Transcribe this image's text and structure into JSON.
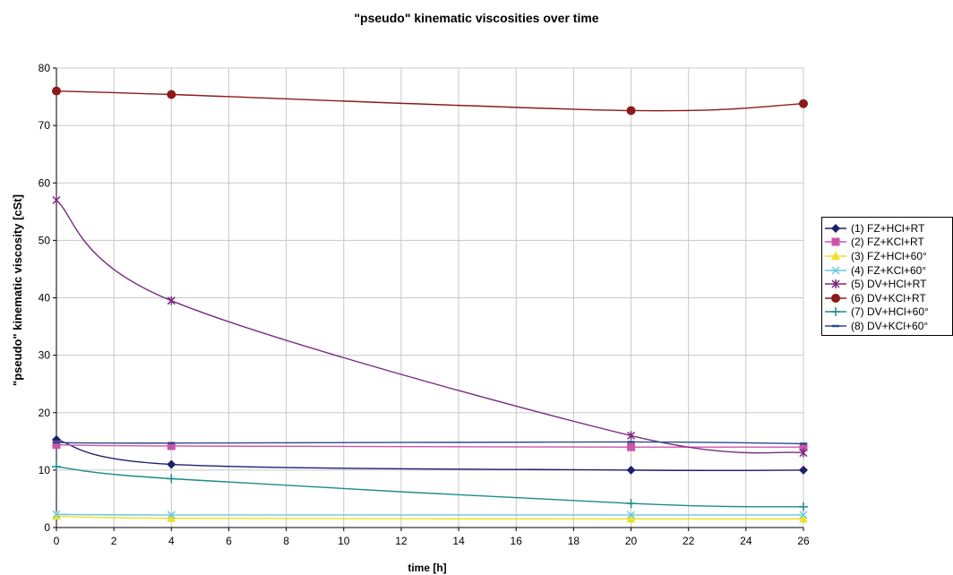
{
  "chart_data": {
    "type": "line",
    "title": "\"pseudo\" kinematic viscosities over time",
    "xlabel": "time [h]",
    "ylabel": "\"pseudo\" kinematic viscosity [cSt]",
    "xlim": [
      0,
      26
    ],
    "ylim": [
      0,
      80
    ],
    "x_ticks": [
      "0",
      "2",
      "4",
      "6",
      "8",
      "10",
      "12",
      "14",
      "16",
      "18",
      "20",
      "22",
      "24",
      "26"
    ],
    "y_ticks": [
      "0",
      "10",
      "20",
      "30",
      "40",
      "50",
      "60",
      "70",
      "80"
    ],
    "grid": true,
    "legend_position": "right",
    "x": [
      0,
      4,
      20,
      26
    ],
    "series": [
      {
        "name": "(1) FZ+HCl+RT",
        "color": "#1f1f6e",
        "marker": "diamond",
        "values": [
          15.3,
          11.0,
          10.0,
          10.0
        ]
      },
      {
        "name": "(2) FZ+KCl+RT",
        "color": "#cc55aa",
        "marker": "square",
        "values": [
          14.4,
          14.2,
          14.0,
          14.0
        ]
      },
      {
        "name": "(3) FZ+HCl+60°",
        "color": "#f0e020",
        "marker": "triangle",
        "values": [
          2.0,
          1.6,
          1.5,
          1.5
        ]
      },
      {
        "name": "(4) FZ+KCl+60°",
        "color": "#66c8e0",
        "marker": "x",
        "values": [
          2.3,
          2.2,
          2.2,
          2.2
        ]
      },
      {
        "name": "(5) DV+HCl+RT",
        "color": "#7a2a80",
        "marker": "star",
        "values": [
          57.0,
          39.5,
          16.0,
          13.0
        ]
      },
      {
        "name": "(6) DV+KCl+RT",
        "color": "#8b1a1a",
        "marker": "circle",
        "values": [
          76.0,
          75.4,
          72.6,
          73.8
        ]
      },
      {
        "name": "(7) DV+HCl+60°",
        "color": "#1e8a8a",
        "marker": "plus",
        "values": [
          10.6,
          8.5,
          4.2,
          3.6
        ]
      },
      {
        "name": "(8) DV+KCl+60°",
        "color": "#2a4a8a",
        "marker": "dash",
        "values": [
          14.8,
          14.7,
          14.9,
          14.6
        ]
      }
    ]
  }
}
